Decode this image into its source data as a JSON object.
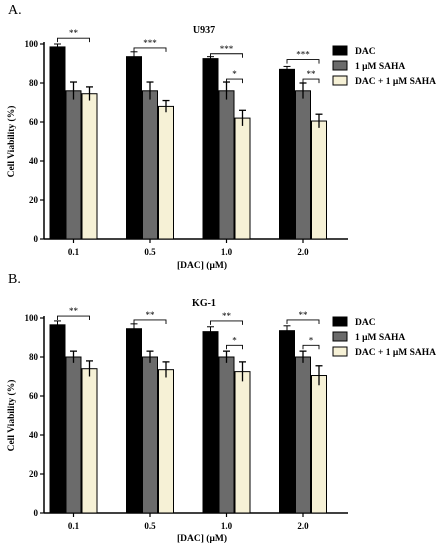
{
  "chart_data": [
    {
      "panel_label": "A.",
      "type": "bar",
      "title": "U937",
      "xlabel": "[DAC] (μM)",
      "ylabel": "Cell Viability (%)",
      "ylim": [
        0,
        100
      ],
      "yticks": [
        "0",
        "20",
        "40",
        "60",
        "80",
        "100"
      ],
      "categories": [
        "0.1",
        "0.5",
        "1.0",
        "2.0"
      ],
      "legend_position": "right",
      "series": [
        {
          "name": "DAC",
          "color": "#000000",
          "values": [
            98.5,
            93.5,
            92.5,
            87
          ],
          "errors": [
            1.5,
            2.5,
            1,
            1.5
          ]
        },
        {
          "name": "1 μM SAHA",
          "color": "#6b6b6b",
          "values": [
            76,
            76,
            76,
            76
          ],
          "errors": [
            4.5,
            4.5,
            4.5,
            4
          ]
        },
        {
          "name": "DAC + 1 μM SAHA",
          "color": "#f6f1d6",
          "values": [
            74.5,
            68,
            62,
            60.5
          ],
          "errors": [
            3.5,
            3,
            4,
            3.5
          ]
        }
      ],
      "significance": [
        {
          "category": 0,
          "from": 0,
          "to": 2,
          "label": "**",
          "y": 103
        },
        {
          "category": 1,
          "from": 0,
          "to": 2,
          "label": "***",
          "y": 98
        },
        {
          "category": 2,
          "from": 0,
          "to": 2,
          "label": "***",
          "y": 95
        },
        {
          "category": 2,
          "from": 1,
          "to": 2,
          "label": "*",
          "y": 82
        },
        {
          "category": 3,
          "from": 0,
          "to": 2,
          "label": "***",
          "y": 92
        },
        {
          "category": 3,
          "from": 1,
          "to": 2,
          "label": "**",
          "y": 82
        }
      ]
    },
    {
      "panel_label": "B.",
      "type": "bar",
      "title": "KG-1",
      "xlabel": "[DAC] (μM)",
      "ylabel": "Cell Viability (%)",
      "ylim": [
        0,
        100
      ],
      "yticks": [
        "0",
        "20",
        "40",
        "60",
        "80",
        "100"
      ],
      "categories": [
        "0.1",
        "0.5",
        "1.0",
        "2.0"
      ],
      "legend_position": "right",
      "series": [
        {
          "name": "DAC",
          "color": "#000000",
          "values": [
            96.5,
            94.5,
            93,
            93.5
          ],
          "errors": [
            2,
            2.5,
            2.5,
            2.5
          ]
        },
        {
          "name": "1 μM SAHA",
          "color": "#6b6b6b",
          "values": [
            80,
            80,
            80,
            80
          ],
          "errors": [
            3,
            3,
            3,
            3
          ]
        },
        {
          "name": "DAC + 1 μM SAHA",
          "color": "#f6f1d6",
          "values": [
            74,
            73.5,
            72.5,
            70.5
          ],
          "errors": [
            4,
            4,
            5,
            5
          ]
        }
      ],
      "significance": [
        {
          "category": 0,
          "from": 0,
          "to": 2,
          "label": "**",
          "y": 101
        },
        {
          "category": 1,
          "from": 0,
          "to": 2,
          "label": "**",
          "y": 99
        },
        {
          "category": 2,
          "from": 0,
          "to": 2,
          "label": "**",
          "y": 98.5
        },
        {
          "category": 2,
          "from": 1,
          "to": 2,
          "label": "*",
          "y": 86
        },
        {
          "category": 3,
          "from": 0,
          "to": 2,
          "label": "**",
          "y": 99
        },
        {
          "category": 3,
          "from": 1,
          "to": 2,
          "label": "*",
          "y": 86
        }
      ]
    }
  ]
}
